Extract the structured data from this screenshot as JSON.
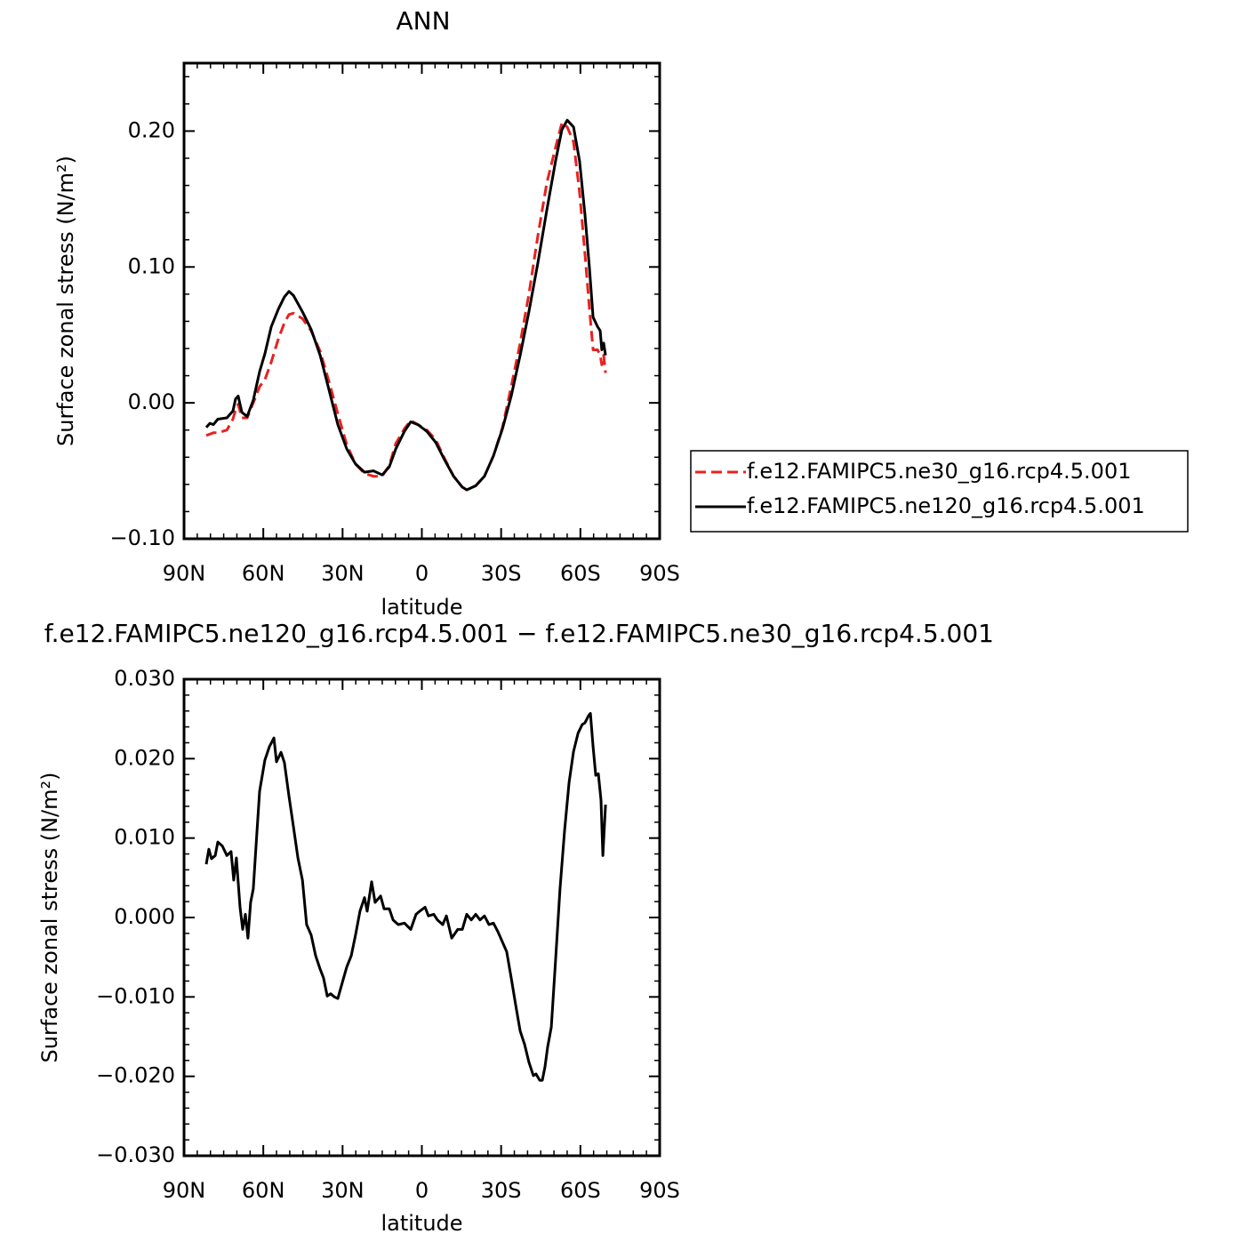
{
  "chart_data": [
    {
      "type": "line",
      "title": "ANN",
      "xlabel": "latitude",
      "ylabel": "Surface zonal stress (N/m²)",
      "x": [
        81.6,
        80.2,
        78.9,
        77.2,
        73.8,
        71.5,
        70.5,
        69.5,
        68.1,
        66.1,
        63.8,
        61.4,
        59.4,
        57.0,
        54.3,
        52.0,
        50.3,
        48.6,
        45.2,
        41.9,
        38.5,
        35.2,
        31.8,
        28.4,
        25.1,
        21.7,
        18.3,
        15.0,
        12.3,
        9.9,
        6.6,
        4.2,
        1.5,
        -1.9,
        -5.2,
        -8.6,
        -12.0,
        -15.3,
        -17.0,
        -20.4,
        -23.7,
        -27.1,
        -30.5,
        -33.8,
        -37.2,
        -40.5,
        -43.9,
        -47.3,
        -50.6,
        -53.0,
        -55.0,
        -57.4,
        -59.7,
        -61.7,
        -63.4,
        -64.8,
        -66.5,
        -67.5,
        -68.1,
        -68.8,
        -69.5
      ],
      "series": [
        {
          "name": "f.e12.FAMIPC5.ne30_g16.rcp4.5.001",
          "color": "#e8211f",
          "dashed": true,
          "values": [
            -0.024,
            -0.023,
            -0.022,
            -0.022,
            -0.02,
            -0.012,
            -0.005,
            -0.001,
            -0.011,
            -0.011,
            0.0,
            0.012,
            0.017,
            0.03,
            0.047,
            0.059,
            0.065,
            0.066,
            0.062,
            0.053,
            0.038,
            0.016,
            -0.008,
            -0.031,
            -0.045,
            -0.052,
            -0.054,
            -0.054,
            -0.046,
            -0.03,
            -0.019,
            -0.013,
            -0.016,
            -0.02,
            -0.027,
            -0.041,
            -0.054,
            -0.062,
            -0.064,
            -0.061,
            -0.054,
            -0.039,
            -0.018,
            0.012,
            0.044,
            0.08,
            0.123,
            0.162,
            0.188,
            0.206,
            0.203,
            0.192,
            0.155,
            0.11,
            0.07,
            0.039,
            0.039,
            0.035,
            0.028,
            0.035,
            0.022
          ]
        },
        {
          "name": "f.e12.FAMIPC5.ne120_g16.rcp4.5.001",
          "color": "#000000",
          "dashed": false,
          "values": [
            -0.018,
            -0.015,
            -0.016,
            -0.012,
            -0.011,
            -0.006,
            0.003,
            0.005,
            -0.007,
            -0.01,
            0.002,
            0.023,
            0.036,
            0.056,
            0.069,
            0.078,
            0.082,
            0.079,
            0.067,
            0.054,
            0.035,
            0.01,
            -0.016,
            -0.034,
            -0.045,
            -0.051,
            -0.05,
            -0.053,
            -0.047,
            -0.034,
            -0.021,
            -0.014,
            -0.016,
            -0.021,
            -0.029,
            -0.042,
            -0.054,
            -0.062,
            -0.064,
            -0.061,
            -0.054,
            -0.039,
            -0.019,
            0.005,
            0.035,
            0.067,
            0.103,
            0.142,
            0.178,
            0.201,
            0.208,
            0.203,
            0.178,
            0.139,
            0.1,
            0.063,
            0.056,
            0.053,
            0.039,
            0.044,
            0.035
          ]
        }
      ],
      "xlim": [
        90,
        -90
      ],
      "xticks": [
        {
          "value": 90,
          "label": "90N"
        },
        {
          "value": 60,
          "label": "60N"
        },
        {
          "value": 30,
          "label": "30N"
        },
        0,
        {
          "value": -30,
          "label": "30S"
        },
        {
          "value": -60,
          "label": "60S"
        },
        {
          "value": -90,
          "label": "90S"
        }
      ],
      "ylim": [
        -0.1,
        0.25
      ],
      "yticks": [
        {
          "value": -0.1,
          "label": "−0.10"
        },
        {
          "value": 0,
          "label": "0.00"
        },
        {
          "value": 0.1,
          "label": "0.10"
        },
        {
          "value": 0.2,
          "label": "0.20"
        }
      ],
      "legend": "outside-right"
    },
    {
      "type": "line",
      "title": "f.e12.FAMIPC5.ne120_g16.rcp4.5.001 − f.e12.FAMIPC5.ne30_g16.rcp4.5.001",
      "xlabel": "latitude",
      "ylabel": "Surface zonal stress (N/m²)",
      "x": [
        81.6,
        80.6,
        79.6,
        78.2,
        77.2,
        75.5,
        73.8,
        72.2,
        71.2,
        70.2,
        68.8,
        67.8,
        66.8,
        65.8,
        64.8,
        63.8,
        62.7,
        61.4,
        59.4,
        57.7,
        56.0,
        55.0,
        53.3,
        52.0,
        50.3,
        48.6,
        46.9,
        45.2,
        43.6,
        41.9,
        40.2,
        38.5,
        37.2,
        35.8,
        34.5,
        33.1,
        31.8,
        30.1,
        28.4,
        26.7,
        25.1,
        23.4,
        21.7,
        20.7,
        19.0,
        17.7,
        15.6,
        14.3,
        12.3,
        10.9,
        8.9,
        6.6,
        4.2,
        2.2,
        0.8,
        -1.2,
        -2.5,
        -4.5,
        -5.9,
        -7.9,
        -9.3,
        -11.3,
        -13.6,
        -15.3,
        -17.0,
        -18.7,
        -20.4,
        -22.0,
        -23.7,
        -25.4,
        -27.1,
        -28.8,
        -30.5,
        -32.1,
        -33.8,
        -35.5,
        -37.2,
        -38.9,
        -40.5,
        -42.2,
        -43.2,
        -44.6,
        -45.6,
        -46.6,
        -47.6,
        -49.0,
        -50.6,
        -52.3,
        -54.0,
        -55.7,
        -57.4,
        -59.1,
        -60.7,
        -61.7,
        -63.1,
        -63.8,
        -64.8,
        -65.8,
        -66.8,
        -67.8,
        -68.5,
        -69.5
      ],
      "color": "#000000",
      "values": [
        0.0067,
        0.0086,
        0.0074,
        0.0078,
        0.0095,
        0.009,
        0.0078,
        0.0083,
        0.0047,
        0.0075,
        0.0013,
        -0.0015,
        0.0004,
        -0.0026,
        0.0019,
        0.0036,
        0.0092,
        0.0159,
        0.0198,
        0.0215,
        0.0226,
        0.0196,
        0.0208,
        0.0195,
        0.0153,
        0.0114,
        0.0075,
        0.0047,
        -0.0009,
        -0.0022,
        -0.0048,
        -0.0065,
        -0.0076,
        -0.0099,
        -0.0096,
        -0.01,
        -0.0102,
        -0.0082,
        -0.0062,
        -0.0048,
        -0.0022,
        0.0008,
        0.0025,
        0.0008,
        0.0045,
        0.0019,
        0.0027,
        0.0011,
        0.0011,
        -0.0003,
        -0.0009,
        -0.0007,
        -0.0015,
        0.0004,
        0.0008,
        0.0013,
        0.0002,
        0.0004,
        -0.0003,
        -0.0009,
        0.0002,
        -0.0026,
        -0.0015,
        -0.0015,
        0.0004,
        -0.0003,
        0.0004,
        -0.0003,
        0.0002,
        -0.0009,
        -0.0007,
        -0.0018,
        -0.0031,
        -0.0043,
        -0.0076,
        -0.011,
        -0.0143,
        -0.016,
        -0.0182,
        -0.0199,
        -0.0197,
        -0.0205,
        -0.0205,
        -0.0188,
        -0.0163,
        -0.0138,
        -0.0054,
        0.0036,
        0.0109,
        0.017,
        0.0209,
        0.0232,
        0.0243,
        0.0245,
        0.0254,
        0.0257,
        0.0215,
        0.0179,
        0.0181,
        0.0148,
        0.0078,
        0.0142
      ],
      "xlim": [
        90,
        -90
      ],
      "xticks": [
        {
          "value": 90,
          "label": "90N"
        },
        {
          "value": 60,
          "label": "60N"
        },
        {
          "value": 30,
          "label": "30N"
        },
        0,
        {
          "value": -30,
          "label": "30S"
        },
        {
          "value": -60,
          "label": "60S"
        },
        {
          "value": -90,
          "label": "90S"
        }
      ],
      "ylim": [
        -0.03,
        0.03
      ],
      "yticks": [
        {
          "value": -0.03,
          "label": "−0.030"
        },
        {
          "value": -0.02,
          "label": "−0.020"
        },
        {
          "value": -0.01,
          "label": "−0.010"
        },
        {
          "value": 0,
          "label": "0.000"
        },
        {
          "value": 0.01,
          "label": "0.010"
        },
        {
          "value": 0.02,
          "label": "0.020"
        },
        {
          "value": 0.03,
          "label": "0.030"
        }
      ]
    }
  ]
}
